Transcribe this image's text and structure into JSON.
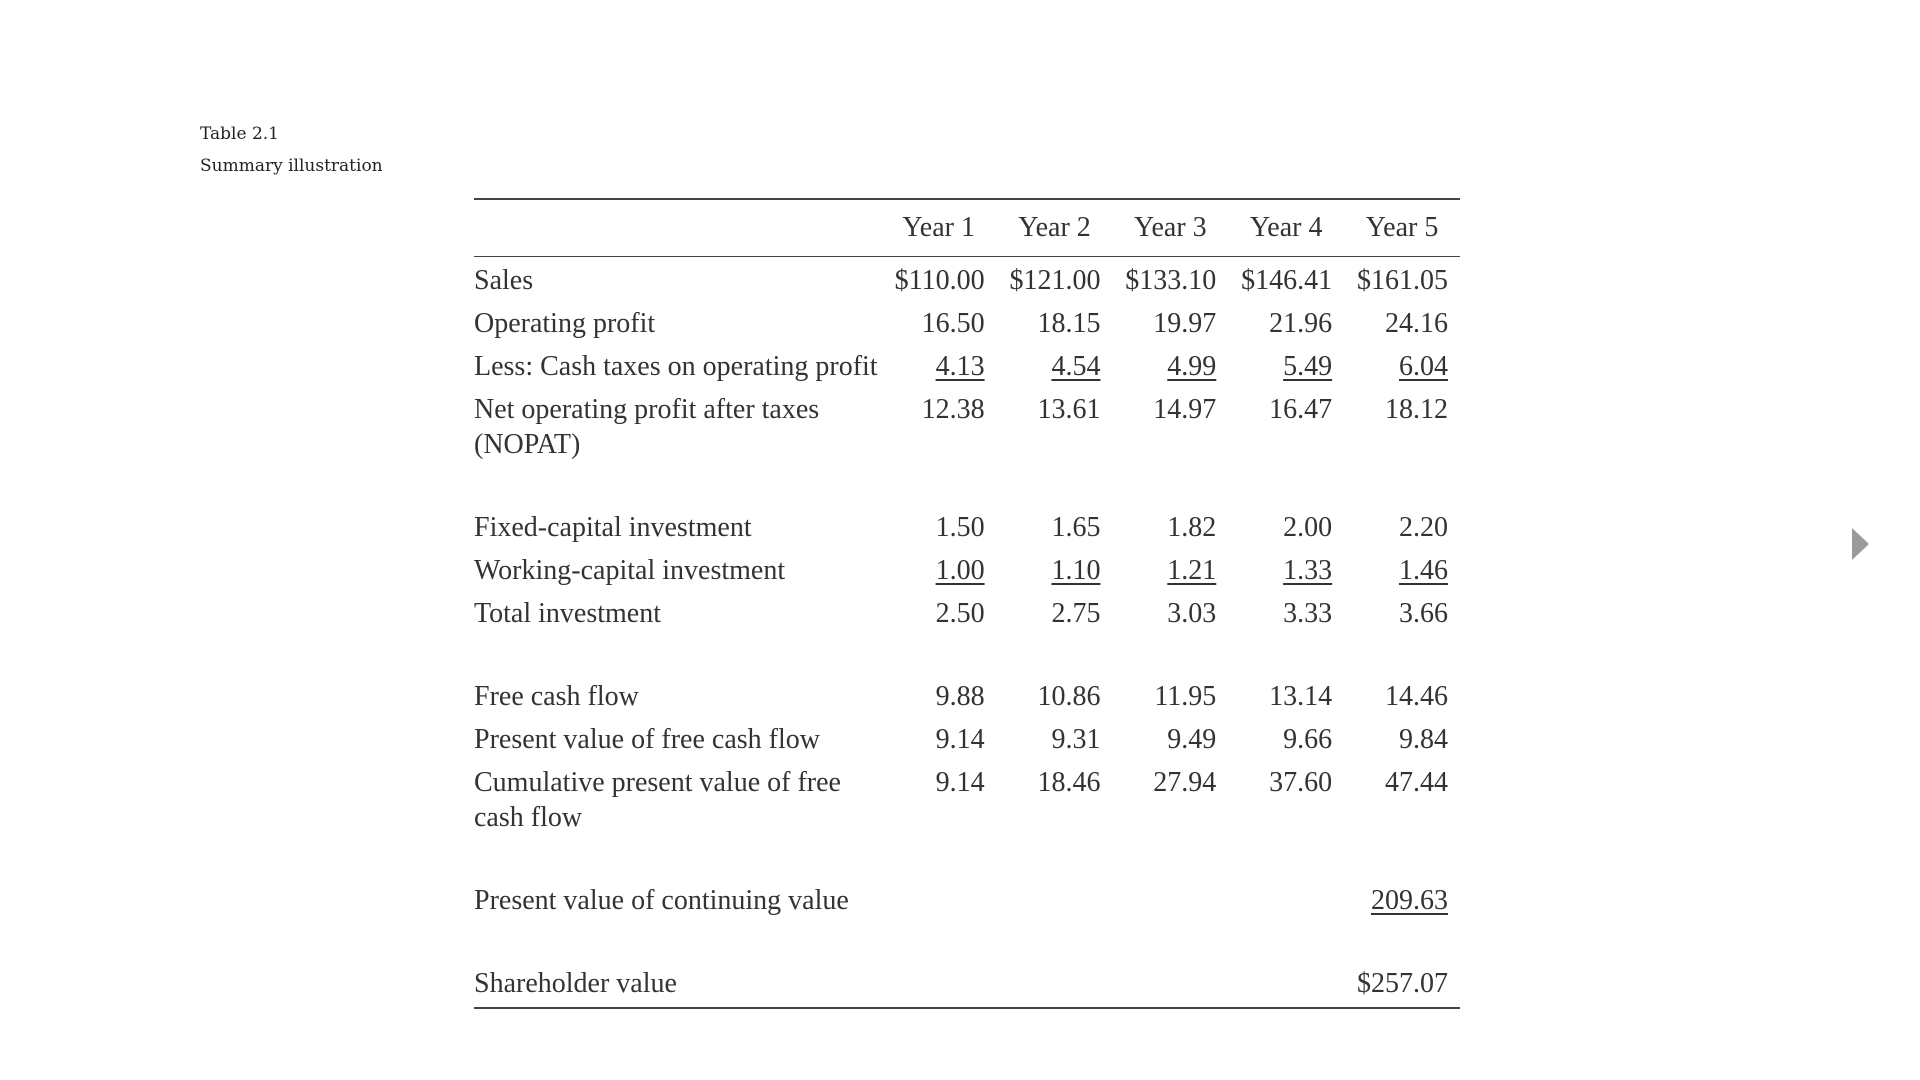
{
  "caption": {
    "number": "Table 2.1",
    "title": "Summary illustration"
  },
  "table": {
    "headers": [
      "",
      "Year 1",
      "Year 2",
      "Year 3",
      "Year 4",
      "Year 5"
    ],
    "rows": {
      "sales": {
        "label": "Sales",
        "values": [
          "$110.00",
          "$121.00",
          "$133.10",
          "$146.41",
          "$161.05"
        ]
      },
      "operating_profit": {
        "label": "Operating profit",
        "values": [
          "16.50",
          "18.15",
          "19.97",
          "21.96",
          "24.16"
        ]
      },
      "cash_taxes": {
        "label": "Less: Cash taxes on operating profit",
        "values": [
          "4.13",
          "4.54",
          "4.99",
          "5.49",
          "6.04"
        ]
      },
      "nopat": {
        "label": "Net operating profit after taxes (NOPAT)",
        "values": [
          "12.38",
          "13.61",
          "14.97",
          "16.47",
          "18.12"
        ]
      },
      "fixed_capital": {
        "label": "Fixed-capital investment",
        "values": [
          "1.50",
          "1.65",
          "1.82",
          "2.00",
          "2.20"
        ]
      },
      "working_capital": {
        "label": "Working-capital investment",
        "values": [
          "1.00",
          "1.10",
          "1.21",
          "1.33",
          "1.46"
        ]
      },
      "total_investment": {
        "label": "Total investment",
        "values": [
          "2.50",
          "2.75",
          "3.03",
          "3.33",
          "3.66"
        ]
      },
      "free_cash_flow": {
        "label": "Free cash flow",
        "values": [
          "9.88",
          "10.86",
          "11.95",
          "13.14",
          "14.46"
        ]
      },
      "pv_fcf": {
        "label": "Present value of free cash flow",
        "values": [
          "9.14",
          "9.31",
          "9.49",
          "9.66",
          "9.84"
        ]
      },
      "cum_pv_fcf": {
        "label": "Cumulative present value of free cash flow",
        "values": [
          "9.14",
          "18.46",
          "27.94",
          "37.60",
          "47.44"
        ]
      },
      "pv_continuing": {
        "label": "Present value of continuing value",
        "value": "209.63"
      },
      "shareholder_value": {
        "label": "Shareholder value",
        "value": "$257.07"
      }
    }
  },
  "navigation": {
    "next_icon": "triangle-right-icon"
  }
}
